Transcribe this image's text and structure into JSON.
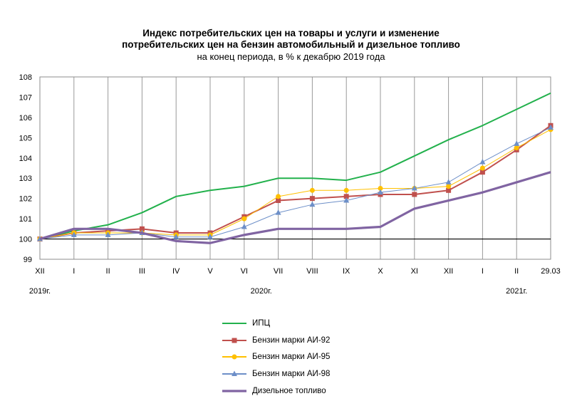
{
  "title": {
    "line1": "Индекс потребительских цен на товары и услуги и изменение",
    "line2": "потребительских цен на бензин автомобильный и дизельное топливо",
    "line3": "на конец периода, в % к декабрю 2019 года"
  },
  "chart_data": {
    "type": "line",
    "categories": [
      "XII",
      "I",
      "II",
      "III",
      "IV",
      "V",
      "VI",
      "VII",
      "VIII",
      "IX",
      "X",
      "XI",
      "XII",
      "I",
      "II",
      "29.03"
    ],
    "year_labels": [
      {
        "index": 0,
        "text": "2019г."
      },
      {
        "index": 6.5,
        "text": "2020г."
      },
      {
        "index": 14,
        "text": "2021г."
      }
    ],
    "ylim": [
      99,
      108
    ],
    "yticks": [
      99,
      100,
      101,
      102,
      103,
      104,
      105,
      106,
      107,
      108
    ],
    "reference_line": 100,
    "grid": "vertical",
    "legend_position": "bottom",
    "series": [
      {
        "name": "ИПЦ",
        "color": "#22b14c",
        "marker": "none",
        "width": 2,
        "values": [
          100,
          100.4,
          100.7,
          101.3,
          102.1,
          102.4,
          102.6,
          103.0,
          103.0,
          102.9,
          103.3,
          104.1,
          104.9,
          105.6,
          106.4,
          107.2
        ]
      },
      {
        "name": "Бензин марки АИ-92",
        "color": "#c0504d",
        "marker": "square",
        "width": 2,
        "values": [
          100,
          100.3,
          100.4,
          100.5,
          100.3,
          100.3,
          101.1,
          101.9,
          102.0,
          102.1,
          102.2,
          102.2,
          102.4,
          103.3,
          104.4,
          105.6
        ]
      },
      {
        "name": "Бензин марки АИ-95",
        "color": "#ffc000",
        "marker": "circle",
        "width": 1,
        "values": [
          100,
          100.3,
          100.3,
          100.3,
          100.2,
          100.2,
          101.0,
          102.1,
          102.4,
          102.4,
          102.5,
          102.5,
          102.6,
          103.5,
          104.5,
          105.4
        ]
      },
      {
        "name": "Бензин марки АИ-98",
        "color": "#6d8fc8",
        "marker": "triangle",
        "width": 1,
        "values": [
          100,
          100.2,
          100.2,
          100.3,
          100.1,
          100.1,
          100.6,
          101.3,
          101.7,
          101.9,
          102.3,
          102.5,
          102.8,
          103.8,
          104.7,
          105.5
        ]
      },
      {
        "name": "Дизельное топливо",
        "color": "#8064a2",
        "marker": "none",
        "width": 3.2,
        "values": [
          100,
          100.5,
          100.5,
          100.3,
          99.9,
          99.8,
          100.2,
          100.5,
          100.5,
          100.5,
          100.6,
          101.5,
          101.9,
          102.3,
          102.8,
          103.3
        ]
      }
    ]
  }
}
